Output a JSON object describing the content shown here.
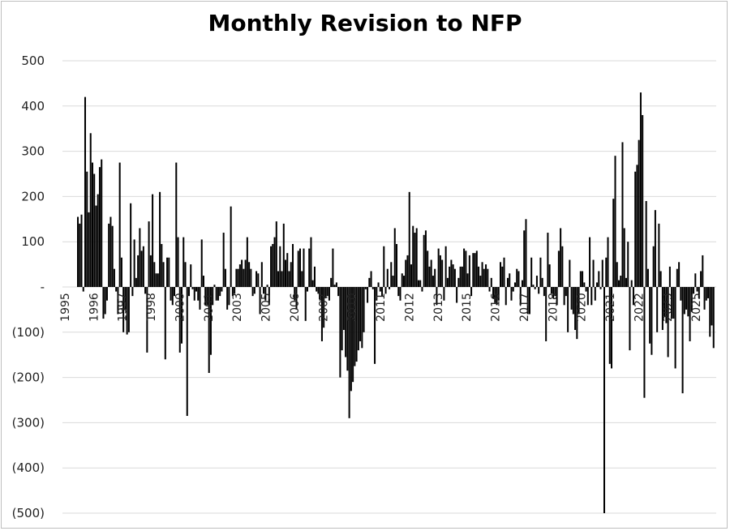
{
  "chart_data": {
    "type": "bar",
    "title": "Monthly Revision to NFP",
    "xlabel": "",
    "ylabel": "",
    "ylim": [
      -500,
      500
    ],
    "ytick_labels": [
      "500",
      "400",
      "300",
      "200",
      "100",
      "-",
      "(100)",
      "(200)",
      "(300)",
      "(400)",
      "(500)"
    ],
    "ytick_values": [
      500,
      400,
      300,
      200,
      100,
      0,
      -100,
      -200,
      -300,
      -400,
      -500
    ],
    "xtick_labels": [
      "1995",
      "1996",
      "1997",
      "1998",
      "2000",
      "2001",
      "2003",
      "2005",
      "2006",
      "2007",
      "2010",
      "2011",
      "2012",
      "2013",
      "2015",
      "2016",
      "2017",
      "2018",
      "2020",
      "2021",
      "2022",
      "2023",
      "2025"
    ],
    "xtick_positions": [
      1995.5,
      1996.5,
      1997.5,
      1998.5,
      2000.5,
      2001.5,
      2002.5,
      2003.5,
      2004.5,
      2005.5,
      2007,
      2008,
      2009,
      2010,
      2011,
      2012,
      2013,
      2014,
      2015,
      2016,
      2017,
      2018,
      2019.9
    ],
    "x_start": 1995.67,
    "x_end": 2025.5,
    "bar_color": "#000000",
    "grid": true,
    "values": [
      155,
      140,
      160,
      -10,
      420,
      255,
      165,
      340,
      275,
      250,
      180,
      205,
      265,
      282,
      -70,
      -60,
      -30,
      140,
      155,
      135,
      40,
      -10,
      -60,
      275,
      65,
      -100,
      -50,
      -105,
      -100,
      185,
      -20,
      105,
      20,
      70,
      130,
      80,
      90,
      -15,
      -145,
      145,
      70,
      205,
      55,
      30,
      30,
      210,
      95,
      55,
      -160,
      65,
      65,
      -30,
      -40,
      -20,
      275,
      110,
      -145,
      -125,
      110,
      55,
      -285,
      -20,
      50,
      -5,
      -30,
      -10,
      -30,
      -50,
      105,
      25,
      -40,
      -40,
      -190,
      -150,
      -40,
      5,
      -30,
      -30,
      -20,
      -10,
      120,
      40,
      -50,
      -40,
      178,
      -20,
      -15,
      40,
      40,
      50,
      60,
      40,
      60,
      110,
      55,
      40,
      -20,
      -15,
      35,
      30,
      -60,
      55,
      -15,
      -30,
      5,
      -40,
      90,
      95,
      110,
      145,
      35,
      90,
      35,
      140,
      60,
      75,
      35,
      55,
      95,
      -30,
      -50,
      80,
      85,
      35,
      85,
      -75,
      -10,
      85,
      110,
      15,
      45,
      -10,
      -15,
      -30,
      -120,
      -90,
      -25,
      -20,
      -30,
      20,
      85,
      5,
      10,
      -20,
      -200,
      -140,
      -95,
      -155,
      -185,
      -290,
      -230,
      -210,
      -175,
      -165,
      -140,
      -120,
      -135,
      -100,
      -5,
      -35,
      20,
      35,
      -5,
      -170,
      -30,
      10,
      -10,
      -20,
      90,
      -15,
      40,
      -5,
      55,
      25,
      130,
      95,
      -20,
      -30,
      30,
      25,
      60,
      70,
      210,
      50,
      135,
      120,
      130,
      15,
      15,
      -10,
      115,
      125,
      80,
      45,
      60,
      25,
      40,
      -40,
      85,
      70,
      60,
      -30,
      90,
      20,
      45,
      60,
      50,
      40,
      -35,
      20,
      45,
      45,
      85,
      80,
      30,
      70,
      -20,
      75,
      75,
      80,
      45,
      25,
      55,
      40,
      50,
      40,
      -10,
      20,
      -25,
      -35,
      -40,
      -30,
      55,
      45,
      65,
      -40,
      20,
      30,
      -30,
      -10,
      10,
      40,
      35,
      -40,
      15,
      125,
      150,
      -60,
      -60,
      65,
      5,
      -5,
      25,
      -15,
      65,
      20,
      -20,
      -120,
      120,
      50,
      -15,
      -25,
      -20,
      -40,
      80,
      130,
      90,
      -40,
      -20,
      -100,
      60,
      -50,
      -60,
      -95,
      -115,
      -60,
      35,
      35,
      10,
      -10,
      -40,
      110,
      -40,
      60,
      -30,
      10,
      35,
      -5,
      60,
      -500,
      65,
      110,
      -170,
      -180,
      195,
      290,
      55,
      15,
      25,
      320,
      130,
      20,
      100,
      -140,
      15,
      -40,
      255,
      270,
      325,
      430,
      380,
      -245,
      190,
      40,
      -125,
      -150,
      90,
      170,
      -100,
      140,
      35,
      -95,
      -65,
      -80,
      -155,
      45,
      -70,
      -70,
      -180,
      40,
      55,
      -30,
      -235,
      -60,
      -50,
      -65,
      -120,
      -55,
      -15,
      30,
      -10,
      -25,
      35,
      70,
      -50,
      -30,
      -25,
      -110,
      -85,
      -135
    ]
  }
}
